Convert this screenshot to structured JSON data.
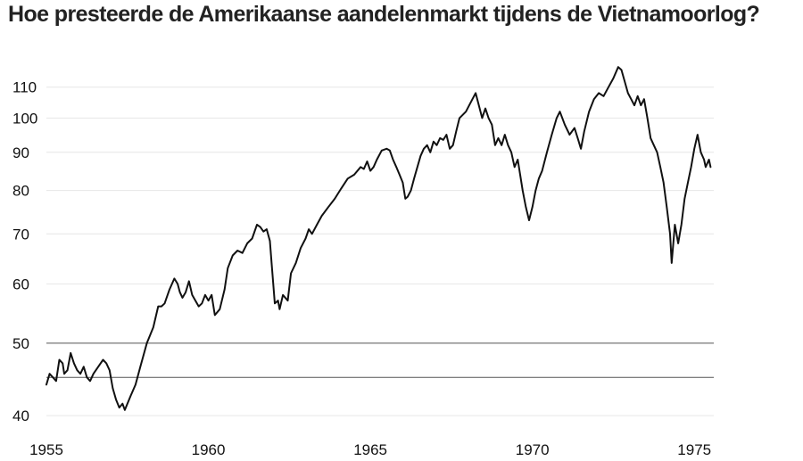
{
  "chart_data": {
    "type": "line",
    "title": "Hoe presteerde de Amerikaanse aandelenmarkt tijdens de Vietnamoorlog?",
    "xlabel": "",
    "ylabel": "",
    "xlim": [
      1955,
      1975.6
    ],
    "ylim": [
      38.5,
      122
    ],
    "y_scale": "log",
    "grid": true,
    "x_ticks": [
      1955,
      1960,
      1965,
      1970,
      1975
    ],
    "y_ticks": [
      40,
      50,
      60,
      70,
      80,
      90,
      100,
      110
    ],
    "reference_lines": [
      45,
      50
    ],
    "series": [
      {
        "color": "#111111",
        "points": [
          [
            1955.0,
            44
          ],
          [
            1955.1,
            45.5
          ],
          [
            1955.2,
            45
          ],
          [
            1955.3,
            44.5
          ],
          [
            1955.4,
            47.5
          ],
          [
            1955.5,
            47
          ],
          [
            1955.55,
            45.5
          ],
          [
            1955.65,
            46
          ],
          [
            1955.75,
            48.5
          ],
          [
            1955.85,
            47
          ],
          [
            1955.95,
            46
          ],
          [
            1956.05,
            45.5
          ],
          [
            1956.15,
            46.5
          ],
          [
            1956.25,
            45
          ],
          [
            1956.35,
            44.5
          ],
          [
            1956.45,
            45.5
          ],
          [
            1956.6,
            46.5
          ],
          [
            1956.75,
            47.5
          ],
          [
            1956.85,
            47
          ],
          [
            1956.95,
            46
          ],
          [
            1957.05,
            43.5
          ],
          [
            1957.15,
            42
          ],
          [
            1957.25,
            41
          ],
          [
            1957.35,
            41.5
          ],
          [
            1957.42,
            40.7
          ],
          [
            1957.5,
            41.5
          ],
          [
            1957.6,
            42.5
          ],
          [
            1957.75,
            44
          ],
          [
            1957.9,
            46.5
          ],
          [
            1958.1,
            50
          ],
          [
            1958.3,
            52.5
          ],
          [
            1958.45,
            56
          ],
          [
            1958.55,
            56
          ],
          [
            1958.65,
            56.5
          ],
          [
            1958.8,
            59
          ],
          [
            1958.95,
            61
          ],
          [
            1959.05,
            60
          ],
          [
            1959.12,
            58.5
          ],
          [
            1959.2,
            57.5
          ],
          [
            1959.3,
            58.5
          ],
          [
            1959.4,
            60.5
          ],
          [
            1959.5,
            58
          ],
          [
            1959.6,
            57
          ],
          [
            1959.7,
            56
          ],
          [
            1959.8,
            56.5
          ],
          [
            1959.9,
            58
          ],
          [
            1960.0,
            57
          ],
          [
            1960.1,
            58
          ],
          [
            1960.2,
            54.5
          ],
          [
            1960.35,
            55.5
          ],
          [
            1960.5,
            59
          ],
          [
            1960.6,
            63
          ],
          [
            1960.75,
            65.5
          ],
          [
            1960.9,
            66.5
          ],
          [
            1961.05,
            66
          ],
          [
            1961.2,
            68
          ],
          [
            1961.35,
            69
          ],
          [
            1961.5,
            72
          ],
          [
            1961.6,
            71.5
          ],
          [
            1961.7,
            70.5
          ],
          [
            1961.8,
            71
          ],
          [
            1961.9,
            68.5
          ],
          [
            1961.95,
            64
          ],
          [
            1962.05,
            56.5
          ],
          [
            1962.15,
            57
          ],
          [
            1962.2,
            55.5
          ],
          [
            1962.3,
            58
          ],
          [
            1962.45,
            57
          ],
          [
            1962.55,
            62
          ],
          [
            1962.7,
            64
          ],
          [
            1962.85,
            67
          ],
          [
            1963.0,
            69
          ],
          [
            1963.1,
            71
          ],
          [
            1963.2,
            70
          ],
          [
            1963.35,
            72
          ],
          [
            1963.5,
            74
          ],
          [
            1963.7,
            76
          ],
          [
            1963.9,
            78
          ],
          [
            1964.1,
            80.5
          ],
          [
            1964.3,
            83
          ],
          [
            1964.5,
            84
          ],
          [
            1964.7,
            86
          ],
          [
            1964.8,
            85.5
          ],
          [
            1964.9,
            87.5
          ],
          [
            1965.0,
            85
          ],
          [
            1965.1,
            86
          ],
          [
            1965.2,
            88
          ],
          [
            1965.35,
            90.5
          ],
          [
            1965.5,
            91
          ],
          [
            1965.6,
            90.5
          ],
          [
            1965.7,
            88
          ],
          [
            1965.8,
            86
          ],
          [
            1965.9,
            84
          ],
          [
            1966.0,
            82
          ],
          [
            1966.08,
            78
          ],
          [
            1966.15,
            78.5
          ],
          [
            1966.25,
            80
          ],
          [
            1966.35,
            83
          ],
          [
            1966.45,
            86
          ],
          [
            1966.55,
            89
          ],
          [
            1966.65,
            91
          ],
          [
            1966.75,
            92
          ],
          [
            1966.85,
            90
          ],
          [
            1966.95,
            93
          ],
          [
            1967.05,
            92
          ],
          [
            1967.15,
            94
          ],
          [
            1967.25,
            93.5
          ],
          [
            1967.35,
            95
          ],
          [
            1967.45,
            91
          ],
          [
            1967.55,
            92
          ],
          [
            1967.65,
            96
          ],
          [
            1967.75,
            100
          ],
          [
            1967.85,
            101
          ],
          [
            1967.95,
            102
          ],
          [
            1968.05,
            104
          ],
          [
            1968.15,
            106
          ],
          [
            1968.25,
            108
          ],
          [
            1968.35,
            104
          ],
          [
            1968.45,
            100
          ],
          [
            1968.55,
            103
          ],
          [
            1968.65,
            100
          ],
          [
            1968.75,
            98
          ],
          [
            1968.85,
            92
          ],
          [
            1968.95,
            94
          ],
          [
            1969.05,
            92
          ],
          [
            1969.15,
            95
          ],
          [
            1969.25,
            92
          ],
          [
            1969.35,
            90
          ],
          [
            1969.45,
            86
          ],
          [
            1969.55,
            88
          ],
          [
            1969.7,
            80
          ],
          [
            1969.8,
            76
          ],
          [
            1969.9,
            73
          ],
          [
            1970.0,
            76
          ],
          [
            1970.1,
            80
          ],
          [
            1970.2,
            83
          ],
          [
            1970.3,
            85
          ],
          [
            1970.45,
            90
          ],
          [
            1970.6,
            95
          ],
          [
            1970.75,
            100
          ],
          [
            1970.85,
            102
          ],
          [
            1971.0,
            98
          ],
          [
            1971.15,
            95
          ],
          [
            1971.3,
            97
          ],
          [
            1971.4,
            94
          ],
          [
            1971.5,
            91
          ],
          [
            1971.6,
            96
          ],
          [
            1971.75,
            102
          ],
          [
            1971.9,
            106
          ],
          [
            1972.05,
            108
          ],
          [
            1972.2,
            107
          ],
          [
            1972.35,
            110
          ],
          [
            1972.5,
            113
          ],
          [
            1972.65,
            117
          ],
          [
            1972.75,
            116
          ],
          [
            1972.85,
            112
          ],
          [
            1972.95,
            108
          ],
          [
            1973.05,
            106
          ],
          [
            1973.15,
            104
          ],
          [
            1973.25,
            107
          ],
          [
            1973.35,
            104
          ],
          [
            1973.45,
            106
          ],
          [
            1973.55,
            100
          ],
          [
            1973.65,
            94
          ],
          [
            1973.75,
            92
          ],
          [
            1973.85,
            90
          ],
          [
            1973.95,
            86
          ],
          [
            1974.05,
            82
          ],
          [
            1974.15,
            76
          ],
          [
            1974.25,
            70
          ],
          [
            1974.3,
            64
          ],
          [
            1974.4,
            72
          ],
          [
            1974.5,
            68
          ],
          [
            1974.6,
            72
          ],
          [
            1974.7,
            78
          ],
          [
            1974.8,
            82
          ],
          [
            1974.9,
            86
          ],
          [
            1975.0,
            91
          ],
          [
            1975.1,
            95
          ],
          [
            1975.2,
            90
          ],
          [
            1975.3,
            88
          ],
          [
            1975.35,
            86
          ],
          [
            1975.45,
            88
          ],
          [
            1975.5,
            86
          ]
        ]
      }
    ]
  }
}
